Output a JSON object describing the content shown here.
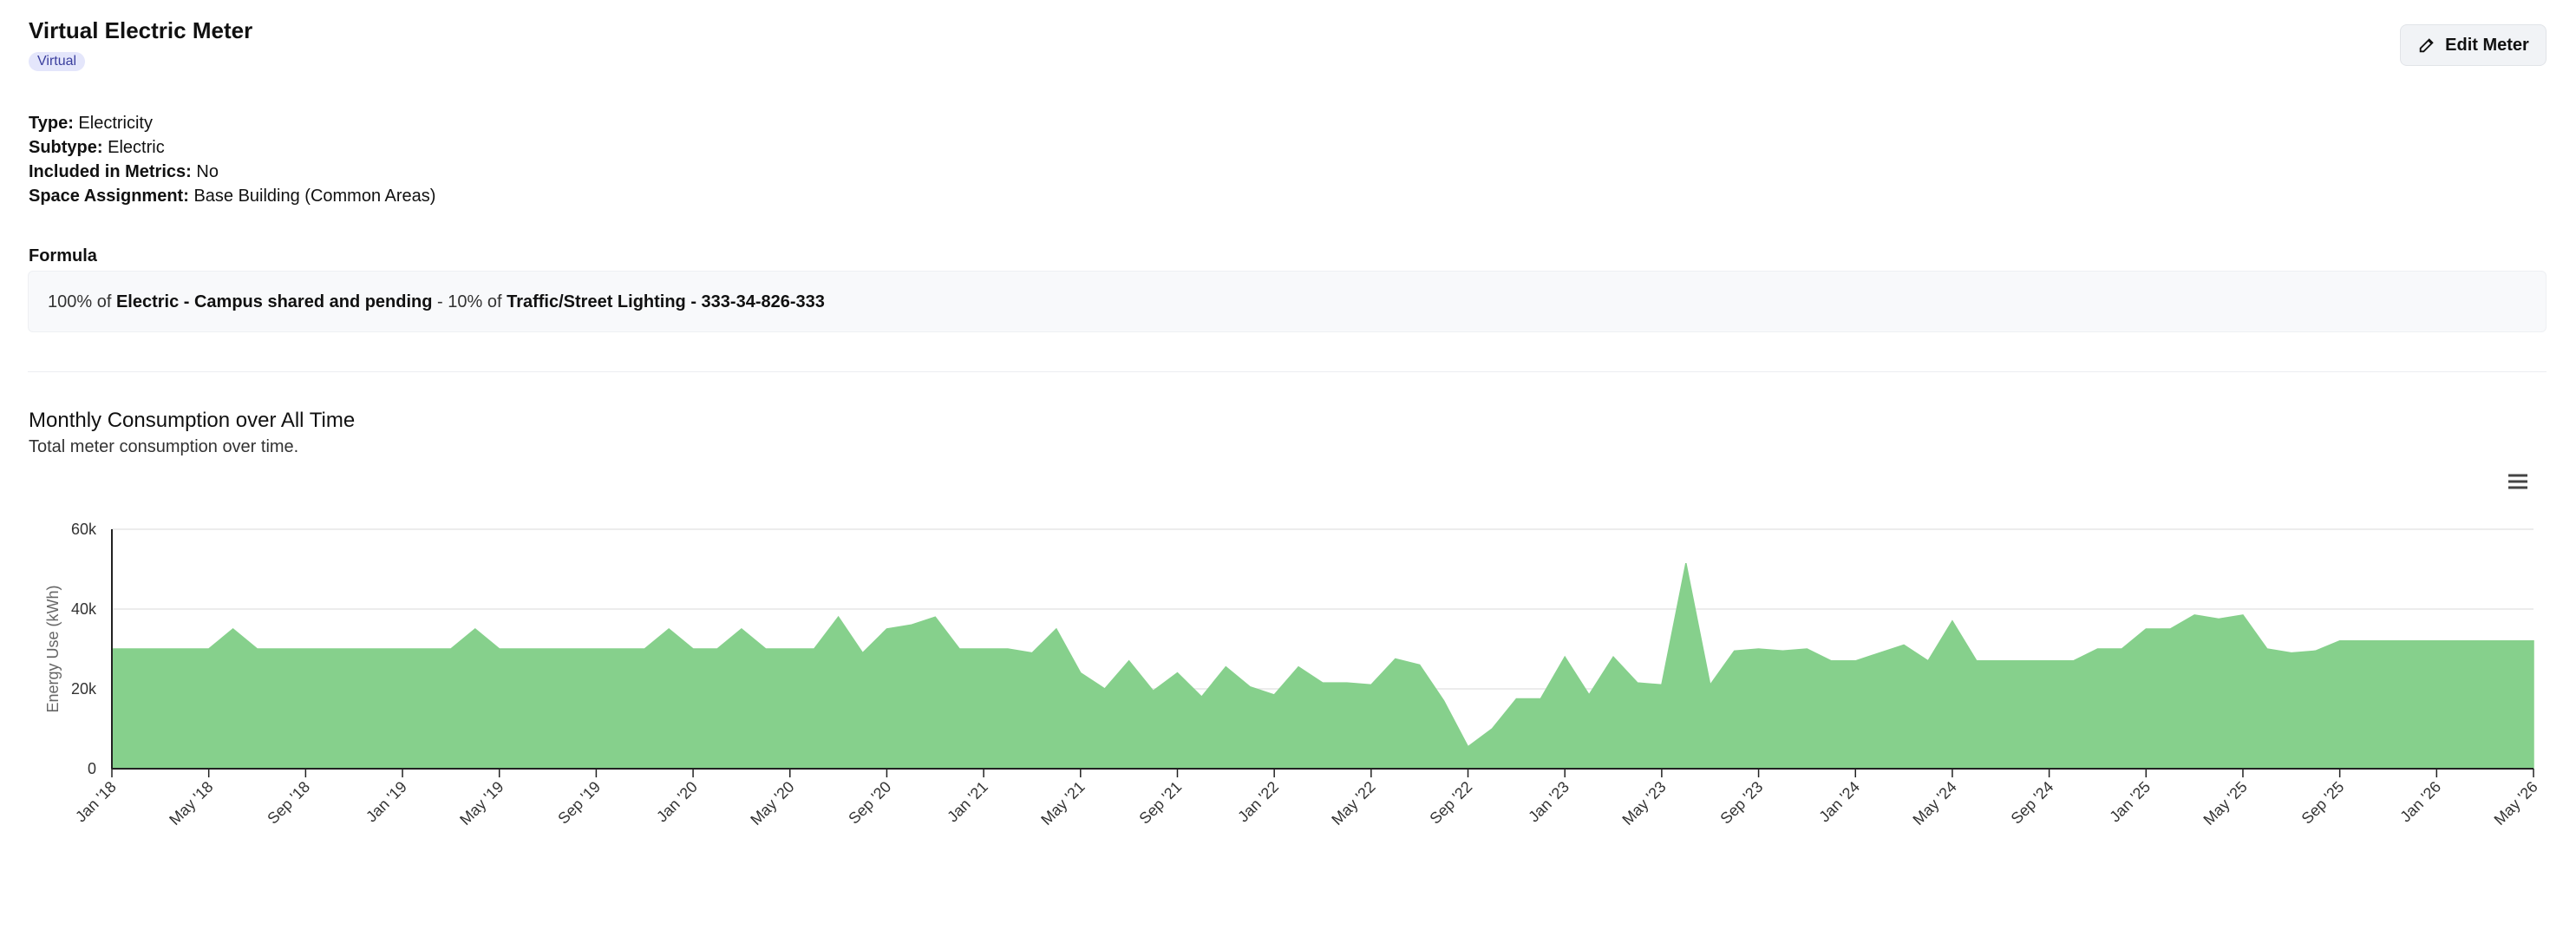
{
  "header": {
    "title": "Virtual Electric Meter",
    "badge": "Virtual",
    "button": "Edit Meter"
  },
  "details": [
    {
      "label": "Type:",
      "value": "Electricity"
    },
    {
      "label": "Subtype:",
      "value": "Electric"
    },
    {
      "label": "Included in Metrics:",
      "value": "No"
    },
    {
      "label": "Space Assignment:",
      "value": "Base Building (Common Areas)"
    }
  ],
  "formula": {
    "label": "Formula",
    "parts": [
      "100% of ",
      "Electric - Campus shared and pending",
      " - 10% of ",
      "Traffic/Street Lighting - 333-34-826-333"
    ]
  },
  "chart_data": {
    "type": "area",
    "title": "Monthly Consumption over All Time",
    "subtitle": "Total meter consumption over time.",
    "y_label": "Energy Use (kWh)",
    "color": "#86d08c",
    "grid": true,
    "categories": [
      "Jan '18",
      null,
      null,
      null,
      "May '18",
      null,
      null,
      null,
      "Sep '18",
      null,
      null,
      null,
      "Jan '19",
      null,
      null,
      null,
      "May '19",
      null,
      null,
      null,
      "Sep '19",
      null,
      null,
      null,
      "Jan '20",
      null,
      null,
      null,
      "May '20",
      null,
      null,
      null,
      "Sep '20",
      null,
      null,
      null,
      "Jan '21",
      null,
      null,
      null,
      "May '21",
      null,
      null,
      null,
      "Sep '21",
      null,
      null,
      null,
      "Jan '22",
      null,
      null,
      null,
      "May '22",
      null,
      null,
      null,
      "Sep '22",
      null,
      null,
      null,
      "Jan '23",
      null,
      null,
      null,
      "May '23",
      null,
      null,
      null,
      "Sep '23",
      null,
      null,
      null,
      "Jan '24",
      null,
      null,
      null,
      "May '24",
      null,
      null,
      null,
      "Sep '24",
      null,
      null,
      null,
      "Jan '25",
      null,
      null,
      null,
      "May '25",
      null,
      null,
      null,
      "Sep '25",
      null,
      null,
      null,
      "Jan '26",
      null,
      null,
      null,
      "May '26"
    ],
    "values": [
      30000,
      30000,
      30000,
      30000,
      30000,
      35000,
      30000,
      30000,
      30000,
      30000,
      30000,
      30000,
      30000,
      30000,
      30000,
      35000,
      30000,
      30000,
      30000,
      30000,
      30000,
      30000,
      30000,
      35000,
      30000,
      30000,
      35000,
      30000,
      30000,
      30000,
      38000,
      29000,
      35000,
      36000,
      38000,
      30000,
      30000,
      30000,
      29000,
      35000,
      24000,
      20000,
      27000,
      19500,
      24000,
      18000,
      25500,
      20500,
      18500,
      25500,
      21500,
      21500,
      21000,
      27500,
      26000,
      17000,
      5500,
      10000,
      17500,
      17500,
      28000,
      18500,
      28000,
      21500,
      21000,
      51500,
      21000,
      29500,
      30000,
      29500,
      30000,
      27000,
      27000,
      29000,
      31000,
      27000,
      37000,
      27000,
      27000,
      27000,
      27000,
      27000,
      30000,
      30000,
      35000,
      35000,
      38500,
      37500,
      38500,
      30000,
      29000,
      29500,
      32000,
      32000,
      32000,
      32000,
      32000,
      32000,
      32000,
      32000,
      32000
    ],
    "ylim": [
      0,
      60000
    ],
    "yticks": [
      0,
      {
        "value": 20000,
        "label": "20k"
      },
      {
        "value": 40000,
        "label": "40k"
      },
      {
        "value": 60000,
        "label": "60k"
      }
    ]
  }
}
